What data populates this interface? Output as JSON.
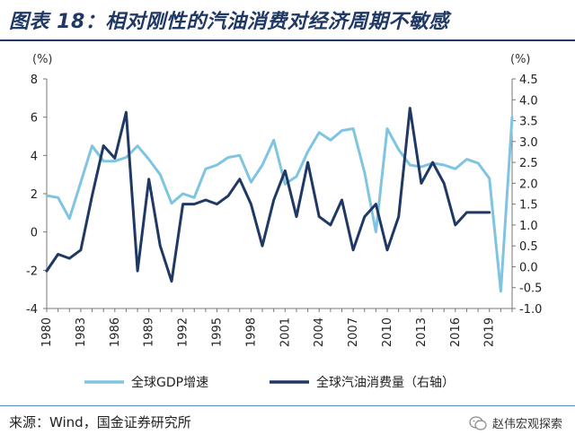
{
  "title": "图表 18：相对刚性的汽油消费对经济周期不敏感",
  "source": "来源：Wind，国金证券研究所",
  "watermark": "赵伟宏观探索",
  "chart_data": {
    "type": "line",
    "y_left_unit": "(%)",
    "y_right_unit": "(%)",
    "y_left_range": [
      -4,
      8
    ],
    "y_left_ticks": [
      "8",
      "6",
      "4",
      "2",
      "0",
      "-2",
      "-4"
    ],
    "y_right_range": [
      -1.0,
      4.5
    ],
    "y_right_ticks": [
      "4.5",
      "4.0",
      "3.5",
      "3.0",
      "2.5",
      "2.0",
      "1.5",
      "1.0",
      "0.5",
      "0.0",
      "-0.5",
      "-1.0"
    ],
    "x_tick_labels": [
      "1980",
      "1983",
      "1986",
      "1989",
      "1992",
      "1995",
      "1998",
      "2001",
      "2004",
      "2007",
      "2010",
      "2013",
      "2016",
      "2019"
    ],
    "legend_position": "bottom",
    "series": [
      {
        "name": "全球GDP增速",
        "axis": "left",
        "color": "#7fc4e0",
        "x": [
          1980,
          1981,
          1982,
          1983,
          1984,
          1985,
          1986,
          1987,
          1988,
          1989,
          1990,
          1991,
          1992,
          1993,
          1994,
          1995,
          1996,
          1997,
          1998,
          1999,
          2000,
          2001,
          2002,
          2003,
          2004,
          2005,
          2006,
          2007,
          2008,
          2009,
          2010,
          2011,
          2012,
          2013,
          2014,
          2015,
          2016,
          2017,
          2018,
          2019,
          2020,
          2021
        ],
        "values": [
          1.9,
          1.8,
          0.7,
          2.6,
          4.5,
          3.7,
          3.7,
          3.9,
          4.5,
          3.8,
          3.0,
          1.5,
          2.0,
          1.8,
          3.3,
          3.5,
          3.9,
          4.0,
          2.6,
          3.5,
          4.8,
          2.5,
          2.9,
          4.2,
          5.2,
          4.8,
          5.3,
          5.4,
          3.1,
          0.0,
          5.4,
          4.3,
          3.5,
          3.4,
          3.6,
          3.5,
          3.3,
          3.8,
          3.6,
          2.8,
          -3.1,
          6.0
        ]
      },
      {
        "name": "全球汽油消费量（右轴）",
        "axis": "right",
        "color": "#1f3864",
        "x": [
          1980,
          1981,
          1982,
          1983,
          1984,
          1985,
          1986,
          1987,
          1988,
          1989,
          1990,
          1991,
          1992,
          1993,
          1994,
          1995,
          1996,
          1997,
          1998,
          1999,
          2000,
          2001,
          2002,
          2003,
          2004,
          2005,
          2006,
          2007,
          2008,
          2009,
          2010,
          2011,
          2012,
          2013,
          2014,
          2015,
          2016,
          2017,
          2018,
          2019
        ],
        "values": [
          -0.1,
          0.3,
          0.2,
          0.4,
          1.7,
          2.9,
          2.6,
          3.7,
          -0.1,
          2.1,
          0.5,
          -0.35,
          1.5,
          1.5,
          1.6,
          1.5,
          1.7,
          2.1,
          1.5,
          0.5,
          1.6,
          2.3,
          1.2,
          2.5,
          1.2,
          1.0,
          1.6,
          0.4,
          1.2,
          1.5,
          0.4,
          1.2,
          3.8,
          2.0,
          2.5,
          2.0,
          1.0,
          1.3,
          1.3,
          1.3
        ]
      }
    ]
  }
}
